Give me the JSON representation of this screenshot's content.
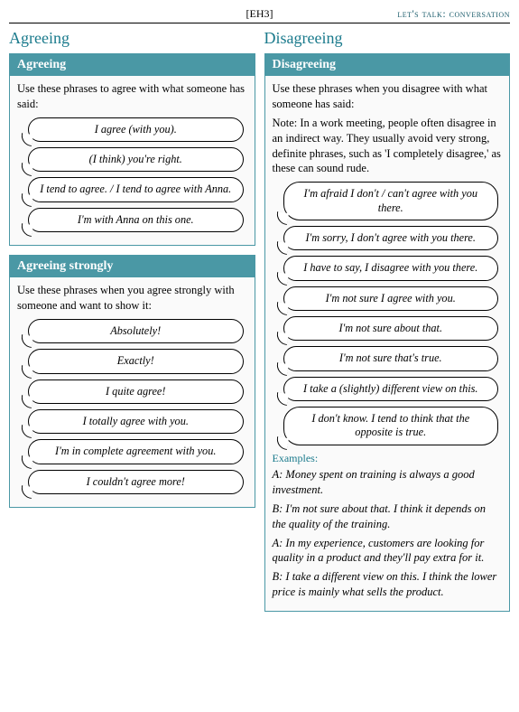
{
  "topbar": {
    "code": "[EH3]",
    "title": "let's talk: conversation"
  },
  "left": {
    "heading": "Agreeing",
    "agreeing": {
      "title": "Agreeing",
      "intro": "Use these phrases to agree with what someone has said:",
      "phrases": [
        "I agree (with you).",
        "(I think) you're right.",
        "I tend to agree. / I tend to agree with Anna.",
        "I'm with Anna on this one."
      ]
    },
    "strongly": {
      "title": "Agreeing strongly",
      "intro": "Use these phrases when you agree strongly with someone and want to show it:",
      "phrases": [
        "Absolutely!",
        "Exactly!",
        "I quite agree!",
        "I totally agree with you.",
        "I'm in complete agreement with you.",
        "I couldn't agree more!"
      ]
    }
  },
  "right": {
    "heading": "Disagreeing",
    "disagreeing": {
      "title": "Disagreeing",
      "intro": "Use these phrases when you disagree with what someone has said:",
      "note": "Note: In a work meeting, people often disagree in an indirect way. They usually avoid very strong, definite phrases, such as 'I completely disagree,' as these can sound rude.",
      "phrases": [
        "I'm afraid I don't / can't agree with you there.",
        "I'm sorry, I don't agree with you there.",
        "I have to say, I disagree with you there.",
        "I'm not sure I agree with you.",
        "I'm not sure about that.",
        "I'm not sure that's true.",
        "I take a (slightly) different view on this.",
        "I don't know. I tend to think that the opposite is true."
      ],
      "examples_label": "Examples:",
      "examples": [
        "A: Money spent on training is always a good investment.",
        "B: I'm not sure about that. I think it depends on the quality of the training.",
        "A: In my experience, customers are looking for quality in a product and they'll pay extra for it.",
        "B: I take a different view on this. I think the lower price is mainly what sells the product."
      ]
    }
  },
  "colors": {
    "teal": "#4a98a5",
    "heading": "#1a7a8c"
  }
}
